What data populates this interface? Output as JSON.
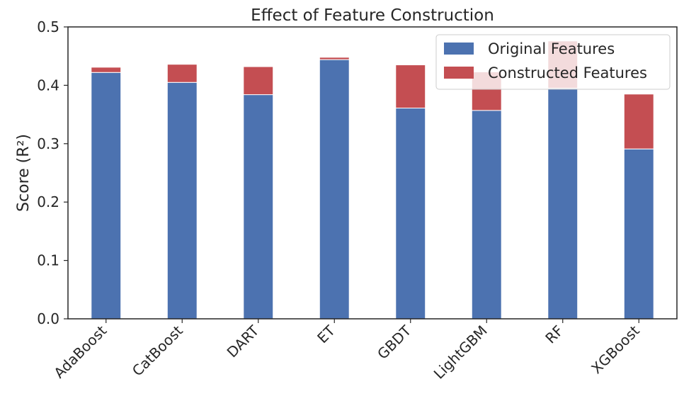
{
  "chart_data": {
    "type": "bar",
    "stacked": true,
    "title": "Effect of Feature Construction",
    "xlabel": "",
    "ylabel": "Score (R²)",
    "ylim": [
      0,
      0.5
    ],
    "yticks": [
      "0.0",
      "0.1",
      "0.2",
      "0.3",
      "0.4",
      "0.5"
    ],
    "grid": false,
    "legend_position": "top-right",
    "categories": [
      "AdaBoost",
      "CatBoost",
      "DART",
      "ET",
      "GBDT",
      "LightGBM",
      "RF",
      "XGBoost"
    ],
    "series": [
      {
        "name": "Original Features",
        "color": "#4c72b0",
        "values": [
          0.422,
          0.405,
          0.384,
          0.444,
          0.361,
          0.357,
          0.395,
          0.291
        ]
      },
      {
        "name": "Constructed Features",
        "color": "#c44e52",
        "values": [
          0.009,
          0.031,
          0.048,
          0.004,
          0.074,
          0.066,
          0.081,
          0.094
        ]
      }
    ]
  }
}
